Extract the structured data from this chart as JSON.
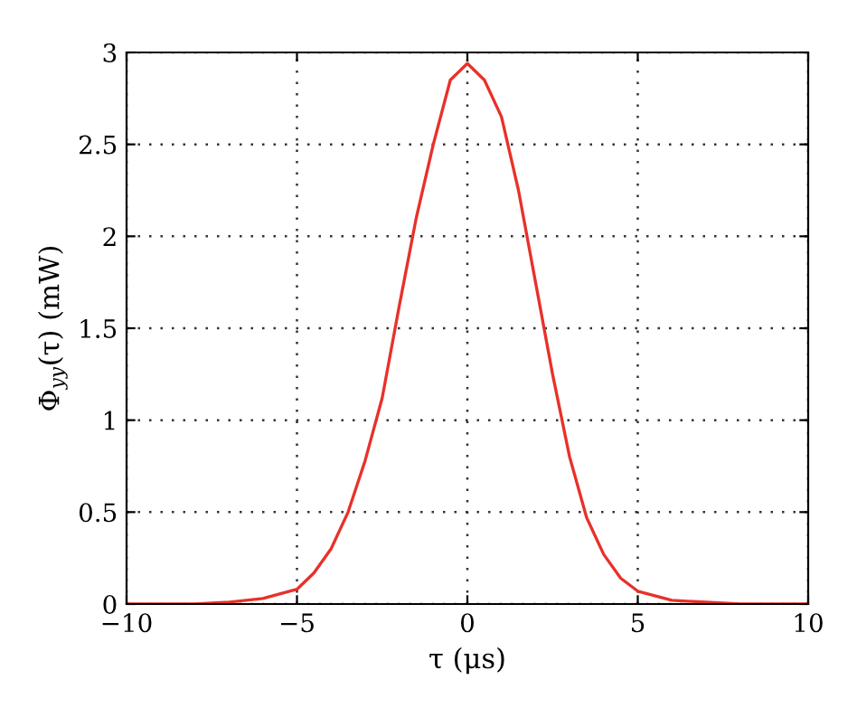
{
  "chart_data": {
    "type": "line",
    "xlabel": "τ (μs)",
    "ylabel": "Φ$_{yy}$(τ) (mW)",
    "x": [
      -10,
      -8,
      -7,
      -6,
      -5,
      -4.5,
      -4,
      -3.5,
      -3,
      -2.5,
      -2,
      -1.5,
      -1,
      -0.5,
      0,
      0.5,
      1,
      1.5,
      2,
      2.5,
      3,
      3.5,
      4,
      4.5,
      5,
      6,
      7,
      8,
      10
    ],
    "series": [
      {
        "color": "#e8312a",
        "values": [
          0,
          0,
          0.01,
          0.03,
          0.08,
          0.17,
          0.3,
          0.5,
          0.78,
          1.12,
          1.62,
          2.1,
          2.5,
          2.85,
          2.94,
          2.85,
          2.65,
          2.25,
          1.75,
          1.25,
          0.8,
          0.47,
          0.27,
          0.14,
          0.07,
          0.02,
          0.01,
          0,
          0
        ]
      }
    ],
    "xlim": [
      -10,
      10
    ],
    "xticks": [
      {
        "value": -10,
        "label": "−10"
      },
      {
        "value": -5,
        "label": "−5"
      },
      0,
      5,
      10
    ],
    "ylim": [
      0,
      3
    ],
    "yticks": [
      0,
      0.5,
      1,
      1.5,
      2,
      2.5,
      3
    ],
    "grid": true,
    "line_style": "solid"
  }
}
